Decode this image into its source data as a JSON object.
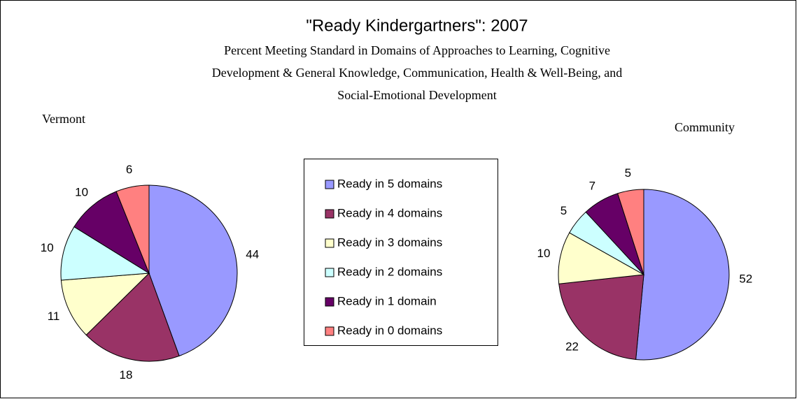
{
  "title": "\"Ready Kindergartners\": 2007",
  "subtitle": [
    "Percent Meeting Standard in Domains of Approaches to Learning, Cognitive",
    "Development & General Knowledge, Communication, Health & Well-Being, and",
    "Social-Emotional Development"
  ],
  "chart_data": [
    {
      "type": "pie",
      "title": "Vermont",
      "categories": [
        "Ready in 5 domains",
        "Ready in 4 domains",
        "Ready in 3 domains",
        "Ready in 2 domains",
        "Ready in 1 domain",
        "Ready in 0 domains"
      ],
      "values": [
        44,
        18,
        11,
        10,
        10,
        6
      ],
      "colors": [
        "#9999ff",
        "#993366",
        "#ffffcc",
        "#ccffff",
        "#660066",
        "#ff8080"
      ]
    },
    {
      "type": "pie",
      "title": "Community",
      "categories": [
        "Ready in 5 domains",
        "Ready in 4 domains",
        "Ready in 3 domains",
        "Ready in 2 domains",
        "Ready in 1 domain",
        "Ready in 0 domains"
      ],
      "values": [
        52,
        22,
        10,
        5,
        7,
        5
      ],
      "colors": [
        "#9999ff",
        "#993366",
        "#ffffcc",
        "#ccffff",
        "#660066",
        "#ff8080"
      ]
    }
  ]
}
